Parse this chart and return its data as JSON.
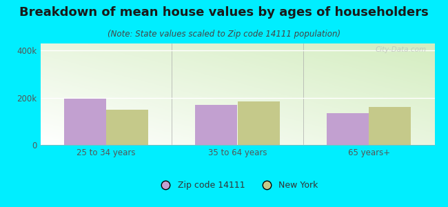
{
  "title": "Breakdown of mean house values by ages of householders",
  "subtitle": "(Note: State values scaled to Zip code 14111 population)",
  "categories": [
    "25 to 34 years",
    "35 to 64 years",
    "65 years+"
  ],
  "zip_values": [
    195000,
    170000,
    135000
  ],
  "ny_values": [
    150000,
    185000,
    162000
  ],
  "zip_color": "#c2a0d0",
  "ny_color": "#c5c98a",
  "background_outer": "#00eeff",
  "ylim": [
    0,
    430000
  ],
  "ytick_labels": [
    "0",
    "200k",
    "400k"
  ],
  "ytick_vals": [
    0,
    200000,
    400000
  ],
  "zip_label": "Zip code 14111",
  "ny_label": "New York",
  "title_fontsize": 13,
  "subtitle_fontsize": 8.5,
  "axis_fontsize": 8.5,
  "legend_fontsize": 9,
  "bar_width": 0.32,
  "watermark": "City-Data.com"
}
